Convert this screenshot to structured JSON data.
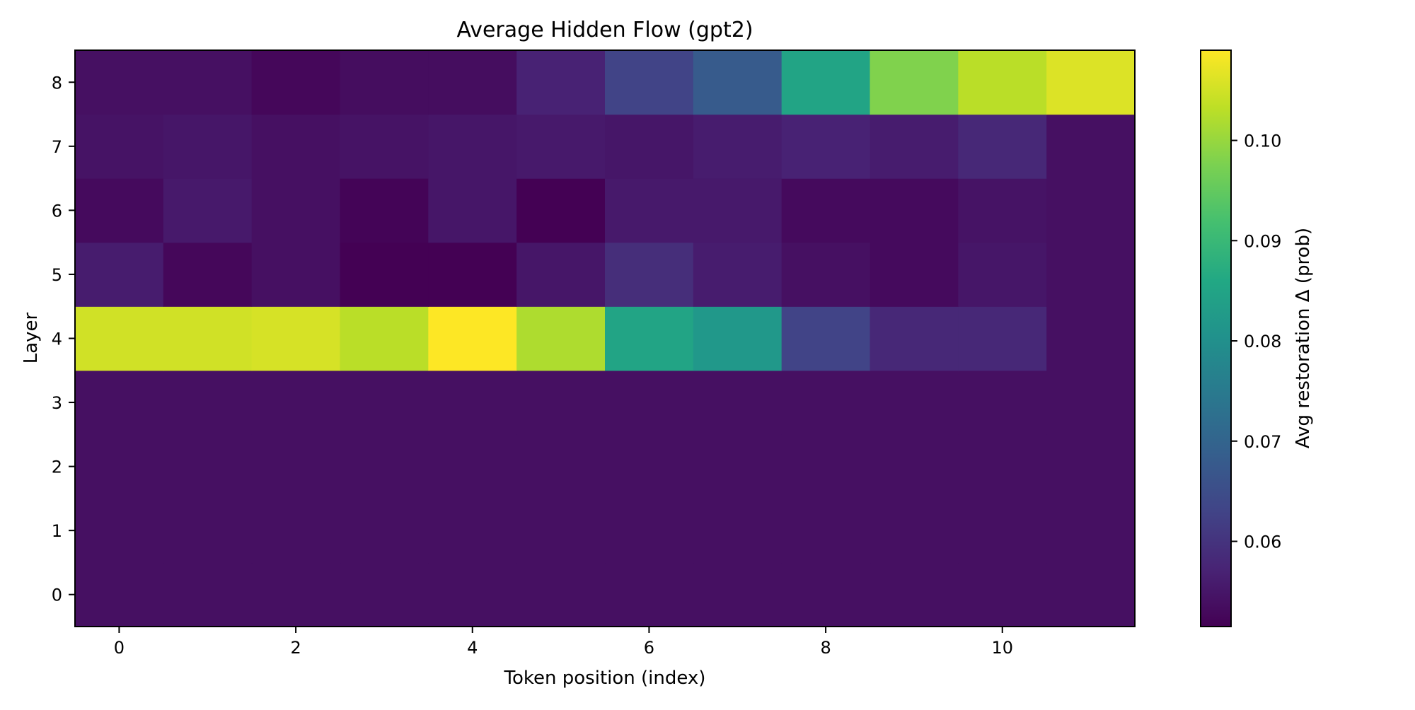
{
  "chart_data": {
    "type": "heatmap",
    "title": "Average Hidden Flow (gpt2)",
    "xlabel": "Token position (index)",
    "ylabel": "Layer",
    "colorbar_label": "Avg restoration Δ (prob)",
    "colormap": "viridis",
    "x": [
      0,
      1,
      2,
      3,
      4,
      5,
      6,
      7,
      8,
      9,
      10,
      11
    ],
    "y": [
      0,
      1,
      2,
      3,
      4,
      5,
      6,
      7,
      8
    ],
    "x_ticks": [
      0,
      2,
      4,
      6,
      8,
      10
    ],
    "y_ticks": [
      0,
      1,
      2,
      3,
      4,
      5,
      6,
      7,
      8
    ],
    "xlim": [
      -0.5,
      11.5
    ],
    "ylim": [
      -0.5,
      8.5
    ],
    "value_range": [
      0.0515,
      0.109
    ],
    "colorbar_ticks": [
      0.06,
      0.07,
      0.08,
      0.09,
      0.1
    ],
    "colorbar_tick_labels": [
      "0.06",
      "0.07",
      "0.08",
      "0.09",
      "0.10"
    ],
    "values": [
      [
        0.054,
        0.054,
        0.054,
        0.054,
        0.054,
        0.054,
        0.054,
        0.054,
        0.054,
        0.054,
        0.054,
        0.054
      ],
      [
        0.054,
        0.054,
        0.054,
        0.054,
        0.054,
        0.054,
        0.054,
        0.054,
        0.054,
        0.054,
        0.054,
        0.054
      ],
      [
        0.054,
        0.054,
        0.054,
        0.054,
        0.054,
        0.054,
        0.054,
        0.054,
        0.054,
        0.054,
        0.054,
        0.054
      ],
      [
        0.054,
        0.054,
        0.054,
        0.054,
        0.054,
        0.054,
        0.054,
        0.054,
        0.054,
        0.054,
        0.054,
        0.054
      ],
      [
        0.105,
        0.105,
        0.1055,
        0.103,
        0.109,
        0.102,
        0.085,
        0.082,
        0.063,
        0.058,
        0.058,
        0.054
      ],
      [
        0.056,
        0.0525,
        0.054,
        0.0515,
        0.0515,
        0.055,
        0.059,
        0.056,
        0.054,
        0.053,
        0.055,
        0.054
      ],
      [
        0.053,
        0.0555,
        0.054,
        0.052,
        0.055,
        0.0515,
        0.0555,
        0.0555,
        0.053,
        0.053,
        0.0545,
        0.054
      ],
      [
        0.0545,
        0.055,
        0.054,
        0.0545,
        0.055,
        0.0555,
        0.055,
        0.056,
        0.057,
        0.056,
        0.058,
        0.054
      ],
      [
        0.054,
        0.054,
        0.0525,
        0.0535,
        0.0535,
        0.057,
        0.063,
        0.068,
        0.085,
        0.098,
        0.103,
        0.106
      ]
    ]
  }
}
